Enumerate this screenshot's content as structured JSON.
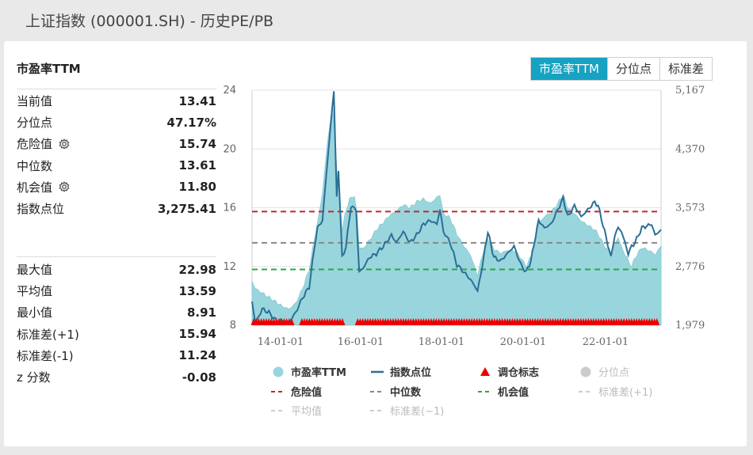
{
  "page": {
    "title": "上证指数 (000001.SH) - 历史PE/PB"
  },
  "panel": {
    "title": "市盈率TTM"
  },
  "tabs": [
    {
      "label": "市盈率TTM",
      "active": true
    },
    {
      "label": "分位点",
      "active": false
    },
    {
      "label": "标准差",
      "active": false
    }
  ],
  "stats_top": [
    {
      "label": "当前值",
      "value": "13.41",
      "gear": false
    },
    {
      "label": "分位点",
      "value": "47.17%",
      "gear": false
    },
    {
      "label": "危险值",
      "value": "15.74",
      "gear": true
    },
    {
      "label": "中位数",
      "value": "13.61",
      "gear": false
    },
    {
      "label": "机会值",
      "value": "11.80",
      "gear": true
    },
    {
      "label": "指数点位",
      "value": "3,275.41",
      "gear": false
    }
  ],
  "stats_bottom": [
    {
      "label": "最大值",
      "value": "22.98"
    },
    {
      "label": "平均值",
      "value": "13.59"
    },
    {
      "label": "最小值",
      "value": "8.91"
    },
    {
      "label": "标准差(+1)",
      "value": "15.94"
    },
    {
      "label": "标准差(-1)",
      "value": "11.24"
    },
    {
      "label": "z 分数",
      "value": "-0.08"
    }
  ],
  "colors": {
    "pe_area": "#99d5dc",
    "index_line": "#2a6f97",
    "danger": "#c0282d",
    "median": "#888888",
    "opportunity": "#28a745",
    "markers": "#ee0000",
    "inactive": "#cccccc",
    "accent": "#17a2c2"
  },
  "chart_data": {
    "type": "area",
    "xlabel": "",
    "ylabel": "",
    "x_ticks": [
      "14-01-01",
      "16-01-01",
      "18-01-01",
      "20-01-01",
      "22-01-01"
    ],
    "x_range": [
      "2013-06-01",
      "2023-07-25"
    ],
    "y_left": {
      "min": 8,
      "max": 24,
      "ticks": [
        8,
        12,
        16,
        20,
        24
      ]
    },
    "y_right": {
      "min": 1979,
      "max": 5167,
      "ticks": [
        "1,979",
        "2,776",
        "3,573",
        "4,370",
        "5,167"
      ]
    },
    "reference_lines": {
      "danger": 15.74,
      "median": 13.61,
      "opportunity": 11.8
    },
    "grid": true,
    "legend_position": "bottom",
    "series": [
      {
        "name": "市盈率TTM",
        "kind": "area",
        "points": [
          [
            "2013-06-01",
            11.0
          ],
          [
            "2013-07-01",
            10.5
          ],
          [
            "2013-09-01",
            10.2
          ],
          [
            "2013-11-01",
            9.9
          ],
          [
            "2014-01-01",
            9.6
          ],
          [
            "2014-03-01",
            9.3
          ],
          [
            "2014-05-01",
            9.1
          ],
          [
            "2014-07-01",
            9.5
          ],
          [
            "2014-09-01",
            10.5
          ],
          [
            "2014-11-01",
            11.8
          ],
          [
            "2014-12-15",
            13.8
          ],
          [
            "2015-01-15",
            15.0
          ],
          [
            "2015-03-01",
            17.0
          ],
          [
            "2015-04-15",
            20.5
          ],
          [
            "2015-06-01",
            22.98
          ],
          [
            "2015-06-20",
            21.0
          ],
          [
            "2015-07-10",
            18.5
          ],
          [
            "2015-08-01",
            17.0
          ],
          [
            "2015-08-25",
            14.5
          ],
          [
            "2015-09-20",
            15.5
          ],
          [
            "2015-11-01",
            16.6
          ],
          [
            "2015-12-15",
            16.8
          ],
          [
            "2016-01-10",
            15.5
          ],
          [
            "2016-01-28",
            13.3
          ],
          [
            "2016-03-01",
            13.2
          ],
          [
            "2016-05-01",
            13.8
          ],
          [
            "2016-07-01",
            14.5
          ],
          [
            "2016-09-01",
            15.0
          ],
          [
            "2016-11-01",
            15.5
          ],
          [
            "2017-01-01",
            15.8
          ],
          [
            "2017-03-01",
            16.2
          ],
          [
            "2017-05-01",
            16.0
          ],
          [
            "2017-07-01",
            16.4
          ],
          [
            "2017-09-01",
            16.6
          ],
          [
            "2017-11-01",
            16.3
          ],
          [
            "2018-01-01",
            16.7
          ],
          [
            "2018-01-28",
            16.9
          ],
          [
            "2018-03-01",
            15.6
          ],
          [
            "2018-05-01",
            15.3
          ],
          [
            "2018-07-01",
            14.2
          ],
          [
            "2018-09-01",
            13.4
          ],
          [
            "2018-11-01",
            12.8
          ],
          [
            "2019-01-04",
            11.4
          ],
          [
            "2019-02-01",
            12.3
          ],
          [
            "2019-04-01",
            14.0
          ],
          [
            "2019-06-01",
            13.2
          ],
          [
            "2019-08-01",
            12.9
          ],
          [
            "2019-10-01",
            13.1
          ],
          [
            "2019-12-01",
            13.1
          ],
          [
            "2020-02-01",
            12.6
          ],
          [
            "2020-03-20",
            12.0
          ],
          [
            "2020-05-01",
            12.7
          ],
          [
            "2020-07-10",
            14.9
          ],
          [
            "2020-09-01",
            15.4
          ],
          [
            "2020-11-01",
            15.7
          ],
          [
            "2021-01-01",
            16.3
          ],
          [
            "2021-02-15",
            16.9
          ],
          [
            "2021-04-01",
            16.0
          ],
          [
            "2021-06-01",
            15.6
          ],
          [
            "2021-08-01",
            15.1
          ],
          [
            "2021-10-01",
            14.8
          ],
          [
            "2021-12-01",
            14.5
          ],
          [
            "2022-01-01",
            14.2
          ],
          [
            "2022-03-01",
            13.4
          ],
          [
            "2022-04-27",
            12.8
          ],
          [
            "2022-06-01",
            13.5
          ],
          [
            "2022-07-01",
            14.0
          ],
          [
            "2022-08-01",
            13.3
          ],
          [
            "2022-10-01",
            12.4
          ],
          [
            "2022-11-01",
            12.0
          ],
          [
            "2022-12-01",
            12.6
          ],
          [
            "2023-02-01",
            13.3
          ],
          [
            "2023-05-01",
            13.0
          ],
          [
            "2023-06-01",
            12.8
          ],
          [
            "2023-07-25",
            13.4
          ]
        ]
      },
      {
        "name": "指数点位",
        "kind": "line",
        "axis": "right",
        "points": [
          [
            "2013-06-01",
            2300
          ],
          [
            "2013-07-01",
            2000
          ],
          [
            "2013-09-01",
            2200
          ],
          [
            "2013-11-01",
            2150
          ],
          [
            "2014-01-01",
            2050
          ],
          [
            "2014-03-01",
            2040
          ],
          [
            "2014-05-01",
            2020
          ],
          [
            "2014-07-01",
            2150
          ],
          [
            "2014-09-01",
            2350
          ],
          [
            "2014-11-01",
            2500
          ],
          [
            "2014-12-15",
            3000
          ],
          [
            "2015-01-15",
            3300
          ],
          [
            "2015-03-01",
            3400
          ],
          [
            "2015-04-15",
            4200
          ],
          [
            "2015-06-12",
            5167
          ],
          [
            "2015-07-08",
            3700
          ],
          [
            "2015-07-24",
            4100
          ],
          [
            "2015-08-26",
            2900
          ],
          [
            "2015-09-30",
            3050
          ],
          [
            "2015-11-15",
            3600
          ],
          [
            "2015-12-31",
            3540
          ],
          [
            "2016-01-28",
            2700
          ],
          [
            "2016-03-01",
            2750
          ],
          [
            "2016-05-01",
            2900
          ],
          [
            "2016-07-01",
            2950
          ],
          [
            "2016-09-01",
            3050
          ],
          [
            "2016-11-15",
            3200
          ],
          [
            "2017-01-01",
            3100
          ],
          [
            "2017-03-01",
            3250
          ],
          [
            "2017-05-01",
            3100
          ],
          [
            "2017-07-01",
            3200
          ],
          [
            "2017-09-01",
            3350
          ],
          [
            "2017-11-01",
            3400
          ],
          [
            "2018-01-01",
            3350
          ],
          [
            "2018-01-28",
            3550
          ],
          [
            "2018-03-01",
            3250
          ],
          [
            "2018-05-01",
            3100
          ],
          [
            "2018-07-01",
            2800
          ],
          [
            "2018-09-01",
            2700
          ],
          [
            "2018-11-01",
            2600
          ],
          [
            "2019-01-04",
            2450
          ],
          [
            "2019-02-01",
            2650
          ],
          [
            "2019-04-08",
            3250
          ],
          [
            "2019-06-01",
            2900
          ],
          [
            "2019-08-01",
            2850
          ],
          [
            "2019-10-01",
            2950
          ],
          [
            "2019-12-01",
            3050
          ],
          [
            "2020-02-01",
            2800
          ],
          [
            "2020-03-20",
            2700
          ],
          [
            "2020-05-01",
            2850
          ],
          [
            "2020-07-10",
            3400
          ],
          [
            "2020-09-01",
            3300
          ],
          [
            "2020-11-01",
            3350
          ],
          [
            "2021-01-01",
            3550
          ],
          [
            "2021-02-18",
            3700
          ],
          [
            "2021-04-01",
            3450
          ],
          [
            "2021-06-01",
            3600
          ],
          [
            "2021-08-01",
            3450
          ],
          [
            "2021-10-01",
            3550
          ],
          [
            "2021-12-01",
            3650
          ],
          [
            "2022-01-01",
            3600
          ],
          [
            "2022-03-01",
            3250
          ],
          [
            "2022-04-27",
            2900
          ],
          [
            "2022-06-01",
            3200
          ],
          [
            "2022-07-01",
            3300
          ],
          [
            "2022-08-01",
            3250
          ],
          [
            "2022-10-01",
            2950
          ],
          [
            "2022-11-01",
            3050
          ],
          [
            "2022-12-01",
            3100
          ],
          [
            "2023-02-01",
            3300
          ],
          [
            "2023-05-01",
            3350
          ],
          [
            "2023-06-01",
            3200
          ],
          [
            "2023-07-25",
            3275
          ]
        ]
      }
    ]
  },
  "legend": [
    {
      "label": "市盈率TTM",
      "kind": "circle",
      "color_key": "pe_area",
      "active": true
    },
    {
      "label": "指数点位",
      "kind": "line",
      "color_key": "index_line",
      "active": true
    },
    {
      "label": "调仓标志",
      "kind": "triangle",
      "color_key": "markers",
      "active": true
    },
    {
      "label": "分位点",
      "kind": "circle",
      "color_key": "inactive",
      "active": false
    },
    {
      "label": "危险值",
      "kind": "dash",
      "color_key": "danger",
      "active": true
    },
    {
      "label": "中位数",
      "kind": "dash",
      "color_key": "median",
      "active": true
    },
    {
      "label": "机会值",
      "kind": "dash",
      "color_key": "opportunity",
      "active": true
    },
    {
      "label": "标准差(+1)",
      "kind": "dash",
      "color_key": "inactive",
      "active": false
    },
    {
      "label": "平均值",
      "kind": "dash",
      "color_key": "inactive",
      "active": false
    },
    {
      "label": "标准差(−1)",
      "kind": "dash",
      "color_key": "inactive",
      "active": false
    }
  ]
}
